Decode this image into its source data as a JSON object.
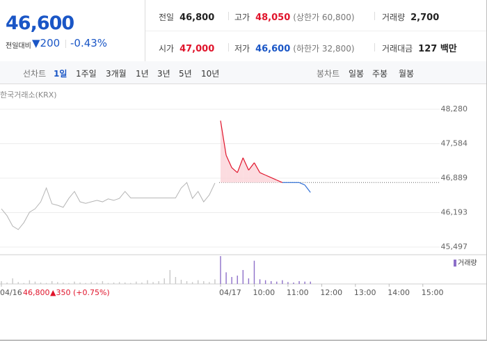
{
  "header": {
    "price": "46,600",
    "change_label": "전일대비",
    "change": "▼200",
    "rate": "-0.43%"
  },
  "summary": {
    "rows": [
      [
        {
          "label": "전일",
          "value": "46,800"
        },
        {
          "label": "고가",
          "value": "48,050",
          "note": "(상한가 60,800)"
        },
        {
          "label": "거래량",
          "value": "2,700"
        }
      ],
      [
        {
          "label": "시가",
          "value": "47,000"
        },
        {
          "label": "저가",
          "value": "46,600",
          "note": "(하한가 32,800)"
        },
        {
          "label": "거래대금",
          "value": "127 백만"
        }
      ]
    ]
  },
  "tabs": {
    "line_label": "선차트",
    "line_periods": [
      "1일",
      "1주일",
      "3개월",
      "1년",
      "3년",
      "5년",
      "10년"
    ],
    "candle_label": "봉차트",
    "candle_periods": [
      "일봉",
      "주봉",
      "월봉"
    ]
  },
  "source": "한국거래소(KRX)",
  "chart_data": {
    "type": "line",
    "categories": [
      "04/16",
      null,
      null,
      null,
      null,
      null,
      null,
      null,
      null,
      null,
      null,
      null,
      null,
      null,
      null,
      null,
      null,
      null,
      null,
      null,
      null,
      null,
      null,
      null,
      null,
      null,
      null,
      null,
      null,
      null,
      null,
      null,
      null,
      null,
      null,
      null,
      null,
      null,
      null,
      "04/17",
      null,
      null,
      null,
      null,
      null,
      "10:00",
      null,
      null,
      null,
      null,
      null,
      "11:00",
      null,
      null,
      null,
      null,
      null,
      "12:00",
      null,
      null,
      null,
      null,
      null,
      "13:00",
      null,
      null,
      null,
      null,
      null,
      "14:00",
      null,
      null,
      null,
      null,
      null,
      "15:00",
      null,
      null
    ],
    "values": [
      46270,
      46130,
      45920,
      45850,
      45990,
      46200,
      46270,
      46410,
      46690,
      46370,
      46340,
      46300,
      46480,
      46620,
      46410,
      46380,
      46410,
      46440,
      46410,
      46470,
      46440,
      46480,
      46620,
      46490,
      46490,
      46490,
      46490,
      46490,
      46490,
      46490,
      46490,
      46490,
      46690,
      46800,
      46480,
      46620,
      46410,
      46550,
      46790,
      48050,
      47350,
      47100,
      47000,
      47300,
      47050,
      47200,
      47000,
      46950,
      46900,
      46850,
      46800,
      46800,
      46800,
      46800,
      46750,
      46600,
      null,
      null,
      null,
      null,
      null,
      null,
      null,
      null,
      null,
      null,
      null,
      null,
      null,
      null,
      null,
      null,
      null,
      null,
      null,
      null,
      null,
      null
    ],
    "colors": {
      "previous": "#b4b4b4",
      "up": "#e0142b",
      "down": "#2f6fd6",
      "up_fill": "#fbd3d8"
    },
    "base_value": 46800,
    "base_label": "46,800",
    "base_change": "▲350 (+0.75%)",
    "ylim": [
      45497,
      48280
    ],
    "yticks": [
      {
        "value": 45497,
        "label": "45,497"
      },
      {
        "value": 46193,
        "label": "46,193"
      },
      {
        "value": 46889,
        "label": "46,889"
      },
      {
        "value": 47584,
        "label": "47,584"
      },
      {
        "value": 48280,
        "label": "48,280"
      }
    ],
    "grid": true,
    "series": [
      {
        "name": "거래량",
        "color": "#8d6fc9",
        "values": [
          60,
          30,
          120,
          40,
          20,
          80,
          50,
          30,
          20,
          60,
          40,
          30,
          20,
          50,
          30,
          20,
          40,
          30,
          60,
          20,
          30,
          40,
          30,
          20,
          50,
          30,
          80,
          40,
          60,
          120,
          300,
          150,
          90,
          60,
          40,
          80,
          60,
          40,
          100,
          600,
          250,
          150,
          180,
          300,
          120,
          500,
          100,
          80,
          60,
          50,
          80,
          40,
          30,
          60,
          50,
          50,
          null,
          null,
          null,
          null,
          null,
          null,
          null,
          null,
          null,
          null,
          null,
          null,
          null,
          null,
          null,
          null,
          null,
          null,
          null,
          null,
          null,
          null
        ]
      }
    ],
    "legend": "top-right"
  }
}
